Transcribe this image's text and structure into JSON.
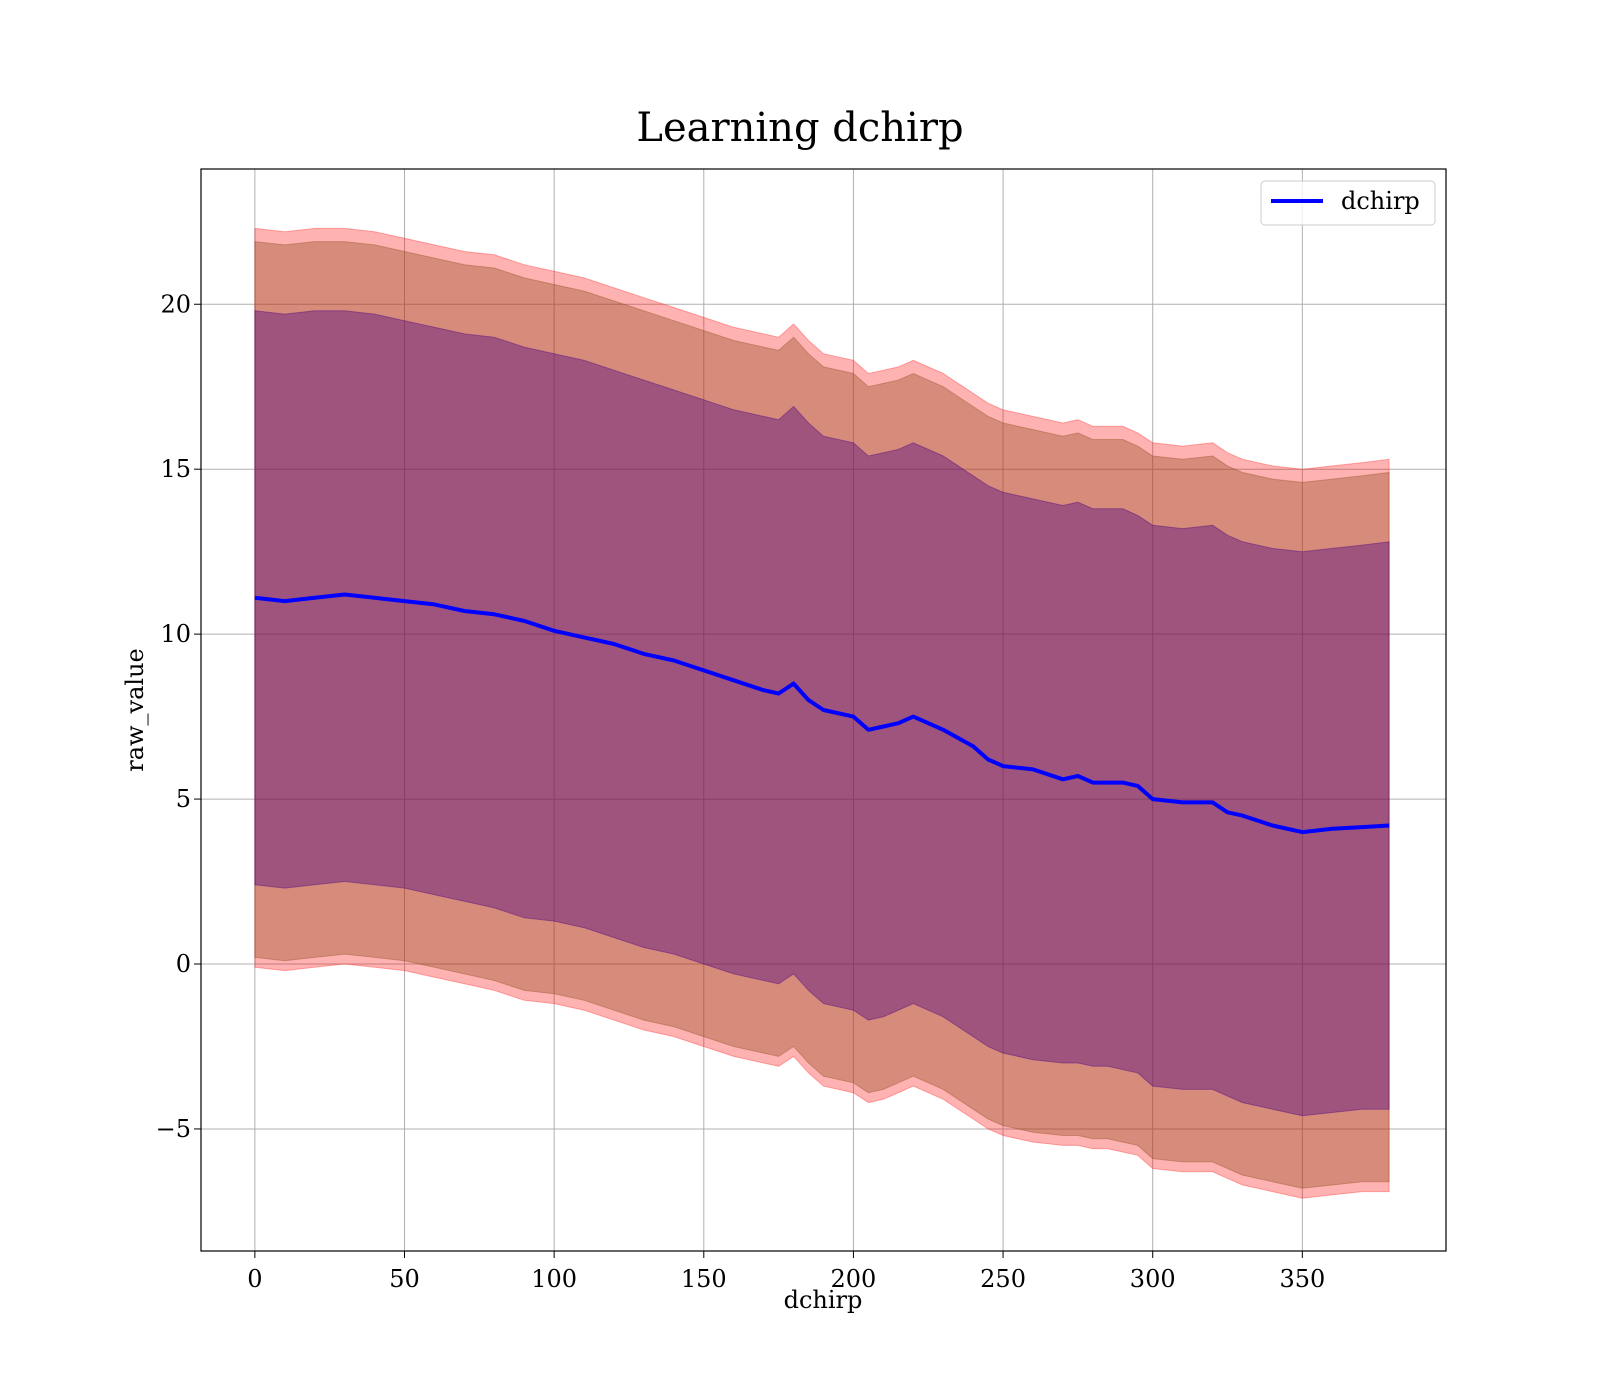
{
  "chart_data": {
    "type": "area",
    "title": "Learning dchirp",
    "xlabel": "dchirp",
    "ylabel": "raw_value",
    "xlim": [
      -18,
      398
    ],
    "ylim": [
      -8.7,
      24.1
    ],
    "xticks": [
      0,
      50,
      100,
      150,
      200,
      250,
      300,
      350
    ],
    "xtick_labels": [
      "0",
      "50",
      "100",
      "150",
      "200",
      "250",
      "300",
      "350"
    ],
    "yticks": [
      -5,
      0,
      5,
      10,
      15,
      20
    ],
    "ytick_labels": [
      "−5",
      "0",
      "5",
      "10",
      "15",
      "20"
    ],
    "grid": true,
    "legend_position": "top-right",
    "x": [
      0,
      10,
      20,
      30,
      40,
      50,
      60,
      70,
      80,
      90,
      100,
      110,
      120,
      130,
      140,
      150,
      160,
      170,
      175,
      180,
      185,
      190,
      200,
      205,
      210,
      215,
      220,
      230,
      240,
      245,
      250,
      260,
      270,
      275,
      280,
      285,
      290,
      295,
      300,
      310,
      320,
      325,
      330,
      340,
      350,
      360,
      370,
      379
    ],
    "series": [
      {
        "name": "dchirp",
        "color": "#0000ff",
        "values": [
          11.1,
          11.0,
          11.1,
          11.2,
          11.1,
          11.0,
          10.9,
          10.7,
          10.6,
          10.4,
          10.1,
          9.9,
          9.7,
          9.4,
          9.2,
          8.9,
          8.6,
          8.3,
          8.2,
          8.5,
          8.0,
          7.7,
          7.5,
          7.1,
          7.2,
          7.3,
          7.5,
          7.1,
          6.6,
          6.2,
          6.0,
          5.9,
          5.6,
          5.7,
          5.5,
          5.5,
          5.5,
          5.4,
          5.0,
          4.9,
          4.9,
          4.6,
          4.5,
          4.2,
          4.0,
          4.1,
          4.15,
          4.2
        ]
      }
    ],
    "bands": [
      {
        "color": "#ff0000",
        "opacity": 0.3,
        "upper": [
          22.3,
          22.2,
          22.3,
          22.3,
          22.2,
          22.0,
          21.8,
          21.6,
          21.5,
          21.2,
          21.0,
          20.8,
          20.5,
          20.2,
          19.9,
          19.6,
          19.3,
          19.1,
          19.0,
          19.4,
          18.9,
          18.5,
          18.3,
          17.9,
          18.0,
          18.1,
          18.3,
          17.9,
          17.3,
          17.0,
          16.8,
          16.6,
          16.4,
          16.5,
          16.3,
          16.3,
          16.3,
          16.1,
          15.8,
          15.7,
          15.8,
          15.5,
          15.3,
          15.1,
          15.0,
          15.1,
          15.2,
          15.3
        ],
        "lower": [
          -0.1,
          -0.2,
          -0.1,
          0.0,
          -0.1,
          -0.2,
          -0.4,
          -0.6,
          -0.8,
          -1.1,
          -1.2,
          -1.4,
          -1.7,
          -2.0,
          -2.2,
          -2.5,
          -2.8,
          -3.0,
          -3.1,
          -2.8,
          -3.3,
          -3.7,
          -3.9,
          -4.2,
          -4.1,
          -3.9,
          -3.7,
          -4.1,
          -4.7,
          -5.0,
          -5.2,
          -5.4,
          -5.5,
          -5.5,
          -5.6,
          -5.6,
          -5.7,
          -5.8,
          -6.2,
          -6.3,
          -6.3,
          -6.5,
          -6.7,
          -6.9,
          -7.1,
          -7.0,
          -6.9,
          -6.9
        ]
      },
      {
        "color": "#8b4513",
        "opacity": 0.35,
        "upper": [
          21.9,
          21.8,
          21.9,
          21.9,
          21.8,
          21.6,
          21.4,
          21.2,
          21.1,
          20.8,
          20.6,
          20.4,
          20.1,
          19.8,
          19.5,
          19.2,
          18.9,
          18.7,
          18.6,
          19.0,
          18.5,
          18.1,
          17.9,
          17.5,
          17.6,
          17.7,
          17.9,
          17.5,
          16.9,
          16.6,
          16.4,
          16.2,
          16.0,
          16.1,
          15.9,
          15.9,
          15.9,
          15.7,
          15.4,
          15.3,
          15.4,
          15.1,
          14.9,
          14.7,
          14.6,
          14.7,
          14.8,
          14.9
        ],
        "lower": [
          0.2,
          0.1,
          0.2,
          0.3,
          0.2,
          0.1,
          -0.1,
          -0.3,
          -0.5,
          -0.8,
          -0.9,
          -1.1,
          -1.4,
          -1.7,
          -1.9,
          -2.2,
          -2.5,
          -2.7,
          -2.8,
          -2.5,
          -3.0,
          -3.4,
          -3.6,
          -3.9,
          -3.8,
          -3.6,
          -3.4,
          -3.8,
          -4.4,
          -4.7,
          -4.9,
          -5.1,
          -5.2,
          -5.2,
          -5.3,
          -5.3,
          -5.4,
          -5.5,
          -5.9,
          -6.0,
          -6.0,
          -6.2,
          -6.4,
          -6.6,
          -6.8,
          -6.7,
          -6.6,
          -6.6
        ]
      },
      {
        "color": "#4b0082",
        "opacity": 0.4,
        "upper": [
          19.8,
          19.7,
          19.8,
          19.8,
          19.7,
          19.5,
          19.3,
          19.1,
          19.0,
          18.7,
          18.5,
          18.3,
          18.0,
          17.7,
          17.4,
          17.1,
          16.8,
          16.6,
          16.5,
          16.9,
          16.4,
          16.0,
          15.8,
          15.4,
          15.5,
          15.6,
          15.8,
          15.4,
          14.8,
          14.5,
          14.3,
          14.1,
          13.9,
          14.0,
          13.8,
          13.8,
          13.8,
          13.6,
          13.3,
          13.2,
          13.3,
          13.0,
          12.8,
          12.6,
          12.5,
          12.6,
          12.7,
          12.8
        ],
        "lower": [
          2.4,
          2.3,
          2.4,
          2.5,
          2.4,
          2.3,
          2.1,
          1.9,
          1.7,
          1.4,
          1.3,
          1.1,
          0.8,
          0.5,
          0.3,
          0.0,
          -0.3,
          -0.5,
          -0.6,
          -0.3,
          -0.8,
          -1.2,
          -1.4,
          -1.7,
          -1.6,
          -1.4,
          -1.2,
          -1.6,
          -2.2,
          -2.5,
          -2.7,
          -2.9,
          -3.0,
          -3.0,
          -3.1,
          -3.1,
          -3.2,
          -3.3,
          -3.7,
          -3.8,
          -3.8,
          -4.0,
          -4.2,
          -4.4,
          -4.6,
          -4.5,
          -4.4,
          -4.4
        ]
      }
    ]
  }
}
